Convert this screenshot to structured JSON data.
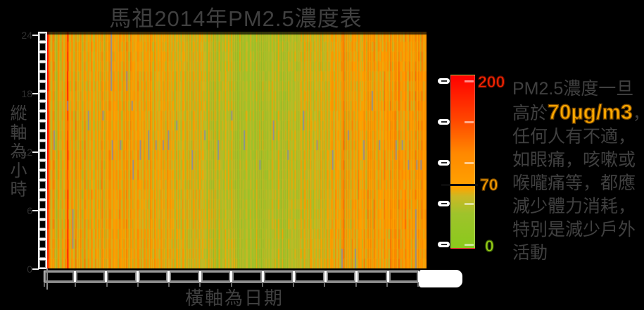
{
  "title": "馬祖2014年PM2.5濃度表",
  "y_axis": {
    "label": "縱軸為小時",
    "ticks": [
      "24",
      "18",
      "12",
      "6",
      "0"
    ],
    "hour_box_count": 24
  },
  "x_axis": {
    "label": "橫軸為日期",
    "month_box_count": 12
  },
  "colorbar": {
    "max_label": "200",
    "threshold_label": "70",
    "min_label": "0",
    "tick_count": 5,
    "label_colors": {
      "max": "#ff2600",
      "threshold": "#ffa300",
      "min": "#9ad117"
    }
  },
  "annotation": {
    "full_text": "PM2.5濃度一旦高於70µg/m3，任何人有不適，如眼痛，咳嗽或喉嚨痛等，都應減少體力消耗，特別是減少戶外活動",
    "highlight_text": "70µg/m3",
    "highlight_color": "#ffaa00",
    "lines": [
      [
        {
          "t": "PM2.5濃度一旦"
        }
      ],
      [
        {
          "t": "高於"
        },
        {
          "t": "70µg/m3",
          "hl": true
        },
        {
          "t": "，"
        }
      ],
      [
        {
          "t": "任何人有不適，"
        }
      ],
      [
        {
          "t": "如眼痛，咳嗽或"
        }
      ],
      [
        {
          "t": "喉嚨痛等，都應"
        }
      ],
      [
        {
          "t": "減少體力消耗，"
        }
      ],
      [
        {
          "t": "特別是減少戶外"
        }
      ],
      [
        {
          "t": "活動"
        }
      ]
    ]
  },
  "chart_data": {
    "type": "heatmap",
    "title": "馬祖2014年PM2.5濃度表",
    "xlabel": "橫軸為日期",
    "ylabel": "縱軸為小時",
    "unit": "µg/m3",
    "x_range": "2014-01-01 to 2014-12-31 (365 days, one column per day)",
    "y_range": [
      0,
      24
    ],
    "y_ticks": [
      24,
      18,
      12,
      6,
      0
    ],
    "scale": {
      "min": 0,
      "threshold": 70,
      "max": 200
    },
    "colormap": [
      {
        "value": 0,
        "color": "#8ac91c"
      },
      {
        "value": 40,
        "color": "#9fc32b"
      },
      {
        "value": 60,
        "color": "#cdb824"
      },
      {
        "value": 70,
        "color": "#ffa300"
      },
      {
        "value": 110,
        "color": "#ff8800"
      },
      {
        "value": 150,
        "color": "#ff4400"
      },
      {
        "value": 200,
        "color": "#ff0000"
      }
    ],
    "missing_color": "#868da6",
    "hour_noise": {
      "seed": 7,
      "amplitude": 0.2
    },
    "daily_values_by_month": [
      [
        190,
        150,
        105,
        62,
        55,
        92,
        108,
        60,
        50,
        46,
        96,
        72,
        55,
        48,
        90,
        62,
        52,
        100,
        86,
        160,
        118,
        70,
        56,
        95,
        88,
        60,
        52,
        110,
        76,
        58,
        64
      ],
      [
        72,
        95,
        58,
        50,
        88,
        105,
        62,
        54,
        92,
        70,
        55,
        100,
        85,
        60,
        52,
        96,
        74,
        58,
        90,
        65,
        55,
        108,
        88,
        62,
        54,
        98,
        72,
        60
      ],
      [
        95,
        110,
        68,
        58,
        100,
        85,
        62,
        92,
        75,
        58,
        105,
        88,
        64,
        56,
        98,
        78,
        60,
        110,
        90,
        66,
        58,
        102,
        80,
        62,
        95,
        74,
        58,
        88,
        108,
        70,
        60
      ],
      [
        85,
        65,
        55,
        95,
        75,
        58,
        88,
        68,
        56,
        100,
        80,
        60,
        52,
        90,
        70,
        56,
        85,
        65,
        54,
        92,
        72,
        58,
        86,
        66,
        55,
        95,
        76,
        58,
        88,
        62
      ],
      [
        60,
        80,
        55,
        48,
        85,
        65,
        52,
        75,
        58,
        48,
        88,
        68,
        54,
        46,
        80,
        62,
        50,
        72,
        56,
        46,
        84,
        66,
        52,
        76,
        58,
        48,
        86,
        64,
        52,
        70,
        55
      ],
      [
        50,
        65,
        45,
        40,
        70,
        55,
        44,
        62,
        48,
        40,
        72,
        56,
        45,
        38,
        66,
        52,
        42,
        60,
        46,
        38,
        68,
        54,
        44,
        64,
        50,
        40,
        70,
        56,
        46,
        58
      ],
      [
        42,
        55,
        40,
        36,
        60,
        48,
        38,
        56,
        44,
        36,
        64,
        50,
        40,
        34,
        58,
        46,
        38,
        54,
        42,
        35,
        62,
        48,
        40,
        56,
        44,
        36,
        60,
        46,
        38,
        52,
        42
      ],
      [
        46,
        60,
        42,
        38,
        66,
        50,
        40,
        58,
        46,
        38,
        68,
        52,
        42,
        36,
        62,
        48,
        40,
        58,
        44,
        38,
        64,
        50,
        42,
        60,
        46,
        40,
        66,
        52,
        44,
        56,
        46
      ],
      [
        55,
        72,
        50,
        44,
        78,
        60,
        48,
        70,
        54,
        46,
        80,
        62,
        50,
        44,
        74,
        58,
        48,
        68,
        52,
        46,
        78,
        60,
        50,
        72,
        56,
        48,
        82,
        64,
        52,
        66
      ],
      [
        70,
        90,
        60,
        52,
        95,
        75,
        58,
        88,
        66,
        56,
        100,
        78,
        130,
        54,
        92,
        72,
        58,
        86,
        64,
        56,
        98,
        76,
        60,
        90,
        68,
        58,
        104,
        80,
        64,
        74,
        60
      ],
      [
        80,
        100,
        66,
        58,
        105,
        82,
        64,
        95,
        72,
        60,
        110,
        86,
        66,
        58,
        100,
        78,
        62,
        92,
        70,
        60,
        108,
        84,
        66,
        96,
        74,
        62,
        112,
        88,
        68,
        78
      ],
      [
        85,
        108,
        70,
        60,
        112,
        88,
        66,
        100,
        76,
        62,
        115,
        90,
        70,
        62,
        105,
        82,
        66,
        96,
        74,
        64,
        110,
        86,
        68,
        102,
        78,
        66,
        118,
        92,
        72,
        84,
        95
      ]
    ],
    "missing_segments": [
      {
        "d": 6,
        "h": 12,
        "len": 2
      },
      {
        "d": 19,
        "h": 16,
        "len": 1
      },
      {
        "d": 24,
        "h": 2,
        "len": 4
      },
      {
        "d": 39,
        "h": 14,
        "len": 2
      },
      {
        "d": 53,
        "h": 15,
        "len": 1
      },
      {
        "d": 61,
        "h": 18,
        "len": 6
      },
      {
        "d": 62,
        "h": 11,
        "len": 2
      },
      {
        "d": 70,
        "h": 12,
        "len": 1
      },
      {
        "d": 76,
        "h": 18,
        "len": 2
      },
      {
        "d": 81,
        "h": 16,
        "len": 1
      },
      {
        "d": 82,
        "h": 9,
        "len": 2
      },
      {
        "d": 89,
        "h": 11,
        "len": 2
      },
      {
        "d": 97,
        "h": 11,
        "len": 3
      },
      {
        "d": 104,
        "h": 12,
        "len": 1
      },
      {
        "d": 111,
        "h": 12,
        "len": 1
      },
      {
        "d": 116,
        "h": 12,
        "len": 2
      },
      {
        "d": 124,
        "h": 14,
        "len": 1
      },
      {
        "d": 139,
        "h": 10,
        "len": 2
      },
      {
        "d": 151,
        "h": 13,
        "len": 1
      },
      {
        "d": 164,
        "h": 11,
        "len": 2
      },
      {
        "d": 177,
        "h": 15,
        "len": 1
      },
      {
        "d": 189,
        "h": 12,
        "len": 2
      },
      {
        "d": 204,
        "h": 10,
        "len": 1
      },
      {
        "d": 217,
        "h": 13,
        "len": 2
      },
      {
        "d": 231,
        "h": 11,
        "len": 1
      },
      {
        "d": 246,
        "h": 14,
        "len": 2
      },
      {
        "d": 259,
        "h": 12,
        "len": 1
      },
      {
        "d": 274,
        "h": 10,
        "len": 2
      },
      {
        "d": 283,
        "h": 0,
        "len": 2
      },
      {
        "d": 289,
        "h": 13,
        "len": 1
      },
      {
        "d": 296,
        "h": 0,
        "len": 2
      },
      {
        "d": 304,
        "h": 11,
        "len": 2
      },
      {
        "d": 312,
        "h": 16,
        "len": 2
      },
      {
        "d": 319,
        "h": 12,
        "len": 1
      },
      {
        "d": 335,
        "h": 11,
        "len": 2
      },
      {
        "d": 341,
        "h": 12,
        "len": 1
      },
      {
        "d": 347,
        "h": 10,
        "len": 1
      },
      {
        "d": 354,
        "h": 0,
        "len": 6
      },
      {
        "d": 355,
        "h": 10,
        "len": 1
      },
      {
        "d": 359,
        "h": 10,
        "len": 1
      }
    ]
  }
}
